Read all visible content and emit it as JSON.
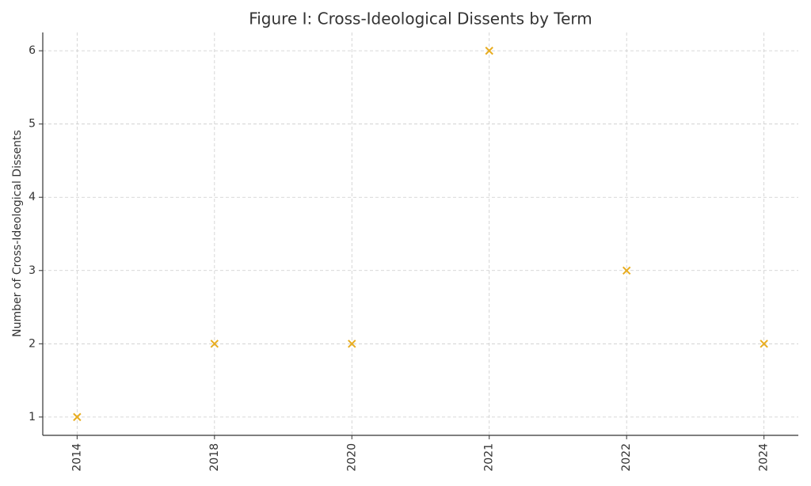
{
  "chart_data": {
    "type": "scatter",
    "title": "Figure I: Cross-Ideological Dissents by Term",
    "y_label": "Number of Cross-Ideological Dissents",
    "categories": [
      "2014",
      "2018",
      "2020",
      "2021",
      "2022",
      "2024"
    ],
    "values": [
      1,
      2,
      2,
      6,
      3,
      2
    ],
    "color": "#e8ad21",
    "marker": "x",
    "ylim": [
      0.75,
      6.25
    ],
    "yticks": [
      1,
      2,
      3,
      4,
      5,
      6
    ],
    "grid": true
  }
}
